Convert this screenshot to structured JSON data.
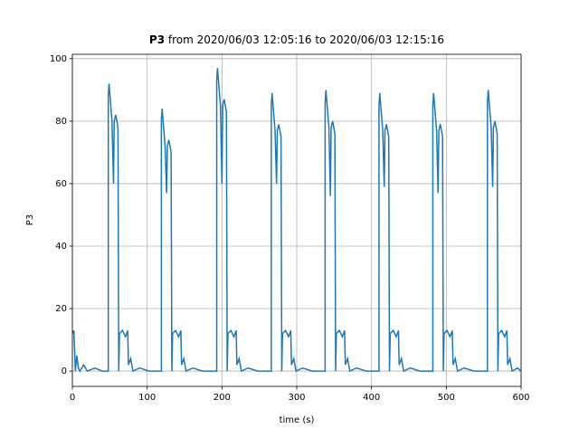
{
  "chart_data": {
    "type": "line",
    "title": [
      "P3",
      "from 2020/06/03 12:05:16 to 2020/06/03 12:15:16"
    ],
    "x_label": "time (s)",
    "y_label": "P3",
    "xlim": [
      0,
      600
    ],
    "ylim": [
      -4.9,
      101.4
    ],
    "xticks": [
      0,
      100,
      200,
      300,
      400,
      500,
      600
    ],
    "yticks": [
      0,
      20,
      40,
      60,
      80,
      100
    ],
    "grid": true,
    "x": [
      0,
      2,
      4,
      6,
      8,
      10,
      15,
      20,
      30,
      40,
      48,
      48,
      49,
      51,
      53,
      55,
      56,
      58,
      61,
      62,
      63,
      67,
      71,
      74,
      75,
      78,
      81,
      90,
      103,
      119,
      119,
      120,
      122,
      124,
      126,
      127,
      129,
      132,
      133,
      134,
      138,
      142,
      145,
      146,
      149,
      152,
      161,
      174,
      193,
      193,
      194,
      196,
      198,
      200,
      201,
      203,
      206,
      207,
      208,
      212,
      216,
      219,
      220,
      223,
      226,
      235,
      248,
      266,
      266,
      267,
      269,
      271,
      273,
      274,
      276,
      279,
      280,
      281,
      285,
      289,
      292,
      293,
      296,
      299,
      308,
      321,
      338,
      338,
      339,
      341,
      343,
      345,
      346,
      348,
      351,
      352,
      353,
      357,
      361,
      364,
      365,
      368,
      371,
      380,
      393,
      410,
      410,
      411,
      413,
      415,
      417,
      418,
      420,
      423,
      424,
      425,
      429,
      433,
      436,
      437,
      440,
      443,
      452,
      465,
      482,
      482,
      483,
      485,
      487,
      489,
      490,
      492,
      495,
      496,
      497,
      501,
      505,
      508,
      509,
      512,
      515,
      524,
      537,
      555,
      555,
      556,
      558,
      560,
      562,
      563,
      565,
      568,
      569,
      570,
      574,
      578,
      581,
      582,
      585,
      588,
      595,
      600
    ],
    "series": [
      {
        "name": "P3",
        "color": "#1f77b4",
        "values": [
          12,
          13,
          0,
          5,
          1,
          0,
          2,
          0,
          1,
          0,
          0,
          88,
          92,
          86,
          80,
          60,
          80,
          82,
          78,
          0,
          12,
          13,
          11,
          13,
          2,
          4,
          0,
          1,
          0,
          0,
          80,
          84,
          78,
          72,
          57,
          72,
          74,
          70,
          0,
          12,
          13,
          11,
          13,
          2,
          4,
          0,
          1,
          0,
          0,
          93,
          97,
          91,
          85,
          60,
          85,
          87,
          83,
          0,
          12,
          13,
          11,
          13,
          2,
          4,
          0,
          1,
          0,
          0,
          85,
          89,
          83,
          77,
          60,
          77,
          79,
          75,
          0,
          12,
          13,
          11,
          13,
          2,
          4,
          0,
          1,
          0,
          0,
          86,
          90,
          84,
          78,
          56,
          78,
          80,
          76,
          0,
          12,
          13,
          11,
          13,
          2,
          4,
          0,
          1,
          0,
          0,
          85,
          89,
          83,
          77,
          59,
          77,
          79,
          75,
          0,
          12,
          13,
          11,
          13,
          2,
          4,
          0,
          1,
          0,
          0,
          85,
          89,
          83,
          77,
          57,
          77,
          79,
          75,
          0,
          12,
          13,
          11,
          13,
          2,
          4,
          0,
          1,
          0,
          0,
          86,
          90,
          84,
          78,
          59,
          78,
          80,
          76,
          0,
          12,
          13,
          11,
          13,
          2,
          4,
          0,
          1,
          0
        ]
      }
    ]
  }
}
